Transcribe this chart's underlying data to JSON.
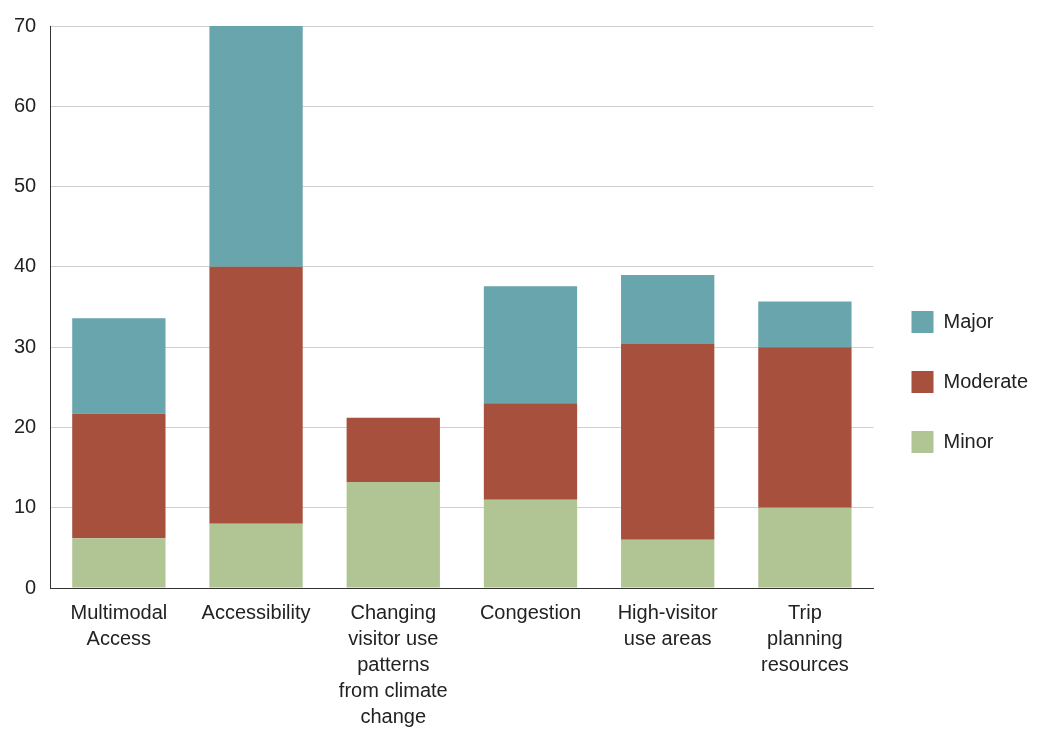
{
  "chart_data": {
    "type": "bar",
    "stacked": true,
    "categories": [
      "Multimodal Access",
      "Accessibility",
      "Changing visitor use patterns from climate change",
      "Congestion",
      "High-visitor use areas",
      "Trip planning resources"
    ],
    "series": [
      {
        "name": "Minor",
        "color": "#b1c594",
        "values": [
          6.2,
          8,
          13.2,
          11,
          6,
          10
        ]
      },
      {
        "name": "Moderate",
        "color": "#a8503e",
        "values": [
          15.5,
          32,
          8,
          12,
          24.4,
          20
        ]
      },
      {
        "name": "Major",
        "color": "#68a5ad",
        "values": [
          11.9,
          30,
          null,
          14.6,
          8.6,
          5.7
        ]
      }
    ],
    "ylim": [
      0,
      70
    ],
    "yticks": [
      0,
      10,
      20,
      30,
      40,
      50,
      60,
      70
    ],
    "grid": "y",
    "legend": "right"
  }
}
